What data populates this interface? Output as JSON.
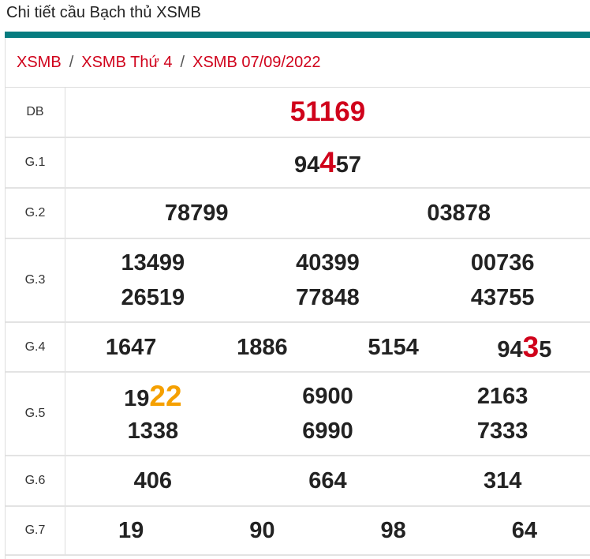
{
  "title": "Chi tiết cầu Bạch thủ XSMB",
  "breadcrumb": [
    "XSMB",
    "XSMB Thứ 4",
    "XSMB 07/09/2022"
  ],
  "colors": {
    "accent": "#077c80",
    "red": "#d0021b",
    "orange": "#f5a000"
  },
  "prizes": [
    {
      "label": "DB",
      "cols": 1,
      "numbers": [
        [
          [
            "51169"
          ]
        ]
      ],
      "special": true
    },
    {
      "label": "G.1",
      "cols": 1,
      "numbers": [
        [
          [
            "94"
          ],
          [
            "4",
            "red"
          ],
          [
            "57"
          ]
        ]
      ]
    },
    {
      "label": "G.2",
      "cols": 2,
      "numbers": [
        [
          [
            "78799"
          ]
        ],
        [
          [
            "03878"
          ]
        ]
      ]
    },
    {
      "label": "G.3",
      "cols": 3,
      "numbers": [
        [
          [
            "13499"
          ]
        ],
        [
          [
            "40399"
          ]
        ],
        [
          [
            "00736"
          ]
        ],
        [
          [
            "26519"
          ]
        ],
        [
          [
            "77848"
          ]
        ],
        [
          [
            "43755"
          ]
        ]
      ]
    },
    {
      "label": "G.4",
      "cols": 4,
      "numbers": [
        [
          [
            "1647"
          ]
        ],
        [
          [
            "1886"
          ]
        ],
        [
          [
            "5154"
          ]
        ],
        [
          [
            "94"
          ],
          [
            "3",
            "red"
          ],
          [
            "5"
          ]
        ]
      ]
    },
    {
      "label": "G.5",
      "cols": 3,
      "numbers": [
        [
          [
            "19"
          ],
          [
            "22",
            "orange"
          ]
        ],
        [
          [
            "6900"
          ]
        ],
        [
          [
            "2163"
          ]
        ],
        [
          [
            "1338"
          ]
        ],
        [
          [
            "6990"
          ]
        ],
        [
          [
            "7333"
          ]
        ]
      ]
    },
    {
      "label": "G.6",
      "cols": 3,
      "numbers": [
        [
          [
            "406"
          ]
        ],
        [
          [
            "664"
          ]
        ],
        [
          [
            "314"
          ]
        ]
      ]
    },
    {
      "label": "G.7",
      "cols": 4,
      "numbers": [
        [
          [
            "19"
          ]
        ],
        [
          [
            "90"
          ]
        ],
        [
          [
            "98"
          ]
        ],
        [
          [
            "64"
          ]
        ]
      ]
    }
  ]
}
